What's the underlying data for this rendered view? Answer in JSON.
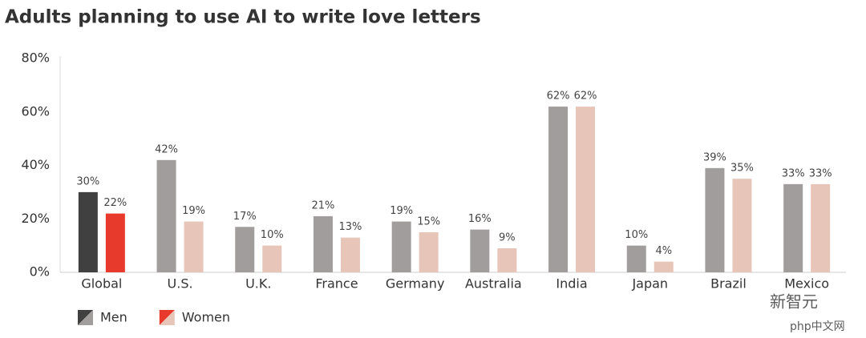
{
  "chart_data": {
    "type": "bar",
    "title": "Adults planning to use AI to write love letters",
    "categories": [
      "Global",
      "U.S.",
      "U.K.",
      "France",
      "Germany",
      "Australia",
      "India",
      "Japan",
      "Brazil",
      "Mexico"
    ],
    "series": [
      {
        "name": "Men",
        "colors": [
          "#404040",
          "#a19d9c",
          "#a19d9c",
          "#a19d9c",
          "#a19d9c",
          "#a19d9c",
          "#a19d9c",
          "#a19d9c",
          "#a19d9c",
          "#a19d9c"
        ],
        "values": [
          30,
          42,
          17,
          21,
          19,
          16,
          62,
          10,
          39,
          33
        ],
        "value_labels": [
          "30%",
          "42%",
          "17%",
          "21%",
          "19%",
          "16%",
          "62%",
          "10%",
          "39%",
          "33%"
        ]
      },
      {
        "name": "Women",
        "colors": [
          "#e8392d",
          "#e8c5b9",
          "#e8c5b9",
          "#e8c5b9",
          "#e8c5b9",
          "#e8c5b9",
          "#e8c5b9",
          "#e8c5b9",
          "#e8c5b9",
          "#e8c5b9"
        ],
        "values": [
          22,
          19,
          10,
          13,
          15,
          9,
          62,
          4,
          35,
          33
        ],
        "value_labels": [
          "22%",
          "19%",
          "10%",
          "13%",
          "15%",
          "9%",
          "62%",
          "4%",
          "35%",
          "33%"
        ]
      }
    ],
    "ylim": [
      0,
      80
    ],
    "yticks": [
      {
        "value": 0,
        "label": "0%"
      },
      {
        "value": 20,
        "label": "20%"
      },
      {
        "value": 40,
        "label": "40%"
      },
      {
        "value": 60,
        "label": "60%"
      },
      {
        "value": 80,
        "label": "80%"
      }
    ],
    "grid": false
  },
  "watermark": [
    "新智元",
    "php中文网"
  ]
}
